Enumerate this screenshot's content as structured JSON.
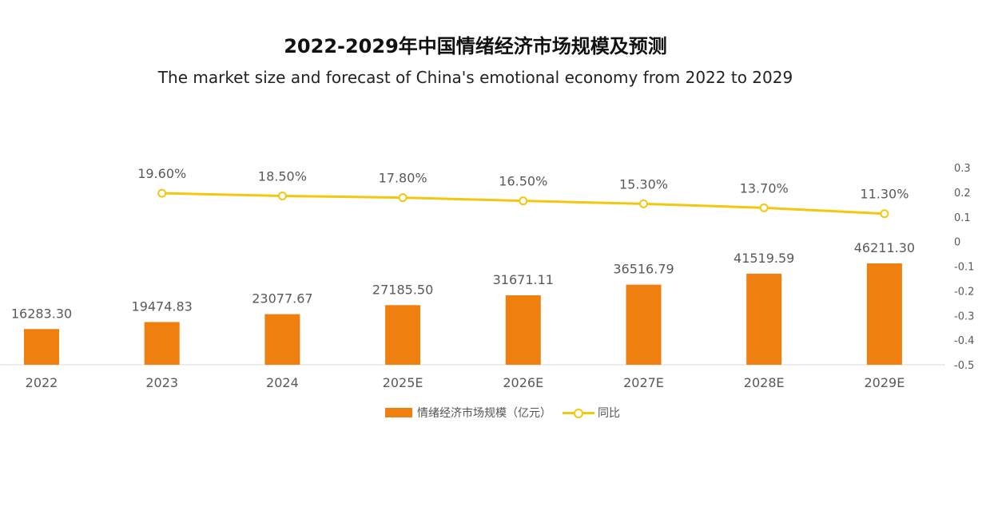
{
  "chart_data": {
    "type": "bar",
    "title": "2022-2029年中国情绪经济市场规模及预测",
    "subtitle": "The market size and forecast of China's emotional economy from 2022 to 2029",
    "categories": [
      "2022",
      "2023",
      "2024",
      "2025E",
      "2026E",
      "2027E",
      "2028E",
      "2029E"
    ],
    "series": [
      {
        "name": "情绪经济市场规模（亿元）",
        "type": "bar",
        "axis": "left",
        "values": [
          16283.3,
          19474.83,
          23077.67,
          27185.5,
          31671.11,
          36516.79,
          41519.59,
          46211.3
        ],
        "labels": [
          "16283.30",
          "19474.83",
          "23077.67",
          "27185.50",
          "31671.11",
          "36516.79",
          "41519.59",
          "46211.30"
        ],
        "color": "#EF7F0E"
      },
      {
        "name": "同比",
        "type": "line",
        "axis": "right",
        "values": [
          null,
          0.196,
          0.185,
          0.178,
          0.165,
          0.153,
          0.137,
          0.113
        ],
        "labels": [
          "",
          "19.60%",
          "18.50%",
          "17.80%",
          "16.50%",
          "15.30%",
          "13.70%",
          "11.30%"
        ],
        "color": "#F2C70E"
      }
    ],
    "y2_ticks": [
      "0.3",
      "0.2",
      "0.1",
      "0",
      "-0.1",
      "-0.2",
      "-0.3",
      "-0.4",
      "-0.5"
    ],
    "y2lim": [
      -0.5,
      0.3
    ],
    "ylim": [
      0,
      100000
    ],
    "legend_position": "bottom",
    "grid": false
  }
}
